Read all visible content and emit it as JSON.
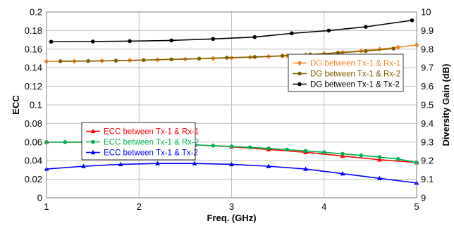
{
  "chart_data": {
    "type": "line",
    "xlabel": "Freq. (GHz)",
    "ylabel_left": "ECC",
    "ylabel_right": "Diversity Gain (dB)",
    "xlim": [
      1,
      5
    ],
    "ylim_left": [
      0,
      0.2
    ],
    "ylim_right": [
      9,
      10
    ],
    "x_ticks": [
      "1",
      "2",
      "3",
      "4",
      "5"
    ],
    "y_left_ticks": [
      "0",
      "0.02",
      "0.04",
      "0.06",
      "0.08",
      "0.1",
      "0.12",
      "0.14",
      "0.16",
      "0.18",
      "0.2"
    ],
    "y_right_ticks": [
      "9",
      "9.1",
      "9.2",
      "9.3",
      "9.4",
      "9.5",
      "9.6",
      "9.7",
      "9.8",
      "9.9",
      "10"
    ],
    "grid": true,
    "legends": {
      "ecc": "middle-left",
      "dg": "top-right"
    },
    "series": [
      {
        "name": "DG between Tx-1 & Rx-1",
        "axis": "right",
        "legend": "dg",
        "color": "#F0892A",
        "marker": "diamond",
        "x": [
          1.0,
          1.3,
          1.6,
          1.9,
          2.2,
          2.5,
          2.8,
          3.0,
          3.2,
          3.4,
          3.6,
          3.8,
          4.0,
          4.2,
          4.4,
          4.6,
          4.8,
          5.0
        ],
        "values": [
          9.734,
          9.735,
          9.737,
          9.74,
          9.743,
          9.746,
          9.75,
          9.753,
          9.756,
          9.76,
          9.765,
          9.77,
          9.776,
          9.783,
          9.791,
          9.8,
          9.81,
          9.822
        ]
      },
      {
        "name": "DG between Tx-1 & Rx-2",
        "axis": "right",
        "legend": "dg",
        "color": "#7F6000",
        "marker": "dot",
        "x": [
          1.15,
          1.45,
          1.75,
          2.05,
          2.35,
          2.65,
          2.95,
          3.25,
          3.55,
          3.85,
          4.15,
          4.45,
          4.75
        ],
        "values": [
          9.735,
          9.736,
          9.738,
          9.741,
          9.745,
          9.749,
          9.754,
          9.758,
          9.764,
          9.771,
          9.78,
          9.79,
          9.803
        ]
      },
      {
        "name": "DG between Tx-1 & Tx-2",
        "axis": "right",
        "legend": "dg",
        "color": "#000000",
        "marker": "dot",
        "x": [
          1.05,
          1.5,
          1.9,
          2.35,
          2.8,
          3.25,
          3.65,
          4.05,
          4.45,
          4.95
        ],
        "values": [
          9.84,
          9.841,
          9.843,
          9.847,
          9.855,
          9.865,
          9.885,
          9.9,
          9.92,
          9.955
        ]
      },
      {
        "name": "ECC between Tx-1 & Rx-1",
        "axis": "left",
        "legend": "ecc",
        "color": "#FF0000",
        "marker": "triangle",
        "x": [
          1.0,
          1.4,
          1.8,
          2.2,
          2.6,
          3.0,
          3.4,
          3.8,
          4.2,
          4.6,
          5.0
        ],
        "values": [
          0.06,
          0.06,
          0.059,
          0.058,
          0.057,
          0.055,
          0.052,
          0.049,
          0.045,
          0.041,
          0.038
        ]
      },
      {
        "name": "ECC between Tx-1 & Rx-2",
        "axis": "left",
        "legend": "ecc",
        "color": "#00B050",
        "marker": "dot",
        "x": [
          1.0,
          1.2,
          1.4,
          1.6,
          1.8,
          2.0,
          2.2,
          2.4,
          2.6,
          2.8,
          3.0,
          3.2,
          3.4,
          3.6,
          3.8,
          4.0,
          4.2,
          4.4,
          4.6,
          4.8,
          5.0
        ],
        "values": [
          0.06,
          0.06,
          0.0598,
          0.0595,
          0.0592,
          0.0588,
          0.0583,
          0.0577,
          0.057,
          0.0562,
          0.0553,
          0.0543,
          0.0532,
          0.0519,
          0.0505,
          0.049,
          0.0474,
          0.0457,
          0.0438,
          0.0418,
          0.038
        ]
      },
      {
        "name": "ECC between Tx-1 & Tx-2",
        "axis": "left",
        "legend": "ecc",
        "color": "#0000FF",
        "marker": "triangle",
        "x": [
          1.0,
          1.4,
          1.8,
          2.2,
          2.6,
          3.0,
          3.4,
          3.8,
          4.2,
          4.6,
          5.0
        ],
        "values": [
          0.031,
          0.034,
          0.036,
          0.037,
          0.037,
          0.036,
          0.034,
          0.031,
          0.026,
          0.021,
          0.016
        ]
      }
    ]
  }
}
